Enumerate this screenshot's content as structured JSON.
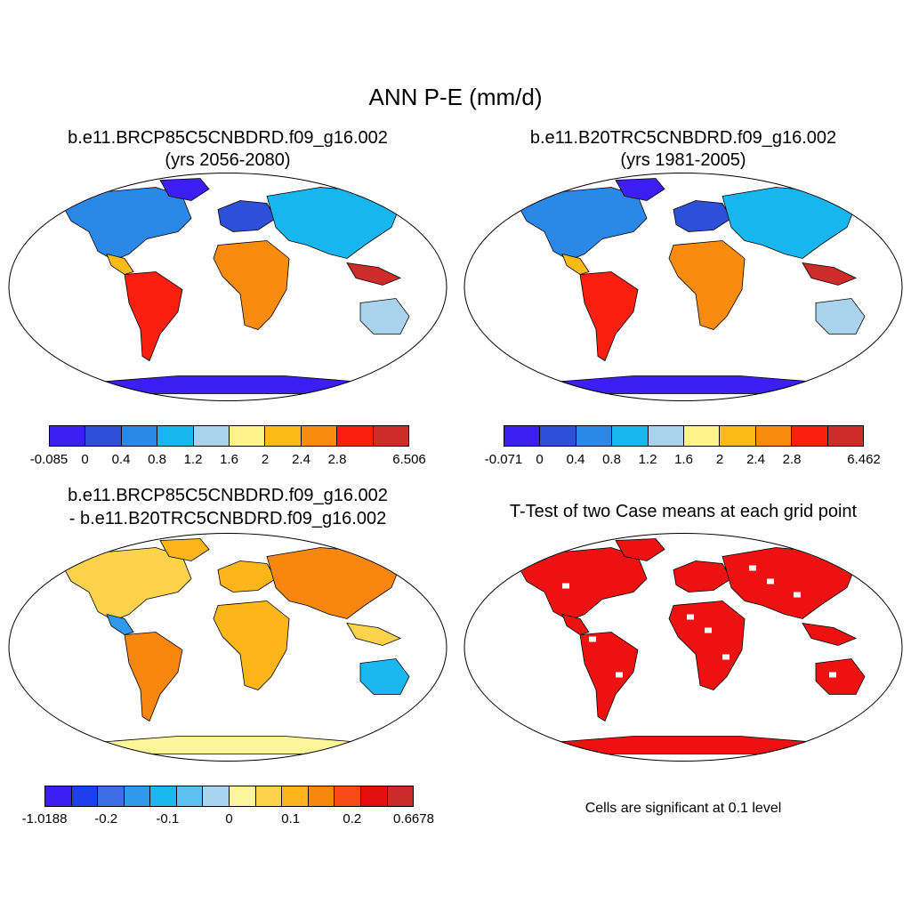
{
  "figure": {
    "title": "ANN P-E (mm/d)"
  },
  "panels": [
    {
      "title_line1": "b.e11.BRCP85C5CNBDRD.f09_g16.002",
      "title_line2": "(yrs 2056-2080)",
      "type": "field",
      "colorbar": {
        "colors": [
          "#3c1ff0",
          "#2f4fd9",
          "#2a88e8",
          "#16b7f0",
          "#a9d3ec",
          "#fdf28c",
          "#fdbb1a",
          "#f98b0f",
          "#fb1f0f",
          "#cf2b2b"
        ],
        "tick_labels": [
          "-0.085",
          "0",
          "0.4",
          "0.8",
          "1.2",
          "1.6",
          "2",
          "2.4",
          "2.8",
          "6.506"
        ]
      }
    },
    {
      "title_line1": "b.e11.B20TRC5CNBDRD.f09_g16.002",
      "title_line2": "(yrs 1981-2005)",
      "type": "field",
      "colorbar": {
        "colors": [
          "#3c1ff0",
          "#2f4fd9",
          "#2a88e8",
          "#16b7f0",
          "#a9d3ec",
          "#fdf28c",
          "#fdbb1a",
          "#f98b0f",
          "#fb1f0f",
          "#cf2b2b"
        ],
        "tick_labels": [
          "-0.071",
          "0",
          "0.4",
          "0.8",
          "1.2",
          "1.6",
          "2",
          "2.4",
          "2.8",
          "6.462"
        ]
      }
    },
    {
      "title_line1": "b.e11.BRCP85C5CNBDRD.f09_g16.002",
      "title_line2": "- b.e11.B20TRC5CNBDRD.f09_g16.002",
      "type": "difference",
      "colorbar": {
        "colors": [
          "#3c1ff0",
          "#1f3ef2",
          "#3d6ee6",
          "#2f9ae9",
          "#1ab8ee",
          "#5ec0ee",
          "#a9d4ef",
          "#fdf59a",
          "#fdd34b",
          "#fdb61a",
          "#f9860f",
          "#f84a14",
          "#e20f10",
          "#cb2a2a"
        ],
        "tick_labels": [
          "-1.0188",
          "-0.2",
          "-0.1",
          "0",
          "0.1",
          "0.2",
          "0.6678"
        ]
      }
    },
    {
      "title_line1": "T-Test of two Case means at each grid point",
      "type": "significance",
      "sig_color": "#ee1111",
      "note": "Cells are significant at 0.1 level"
    }
  ]
}
